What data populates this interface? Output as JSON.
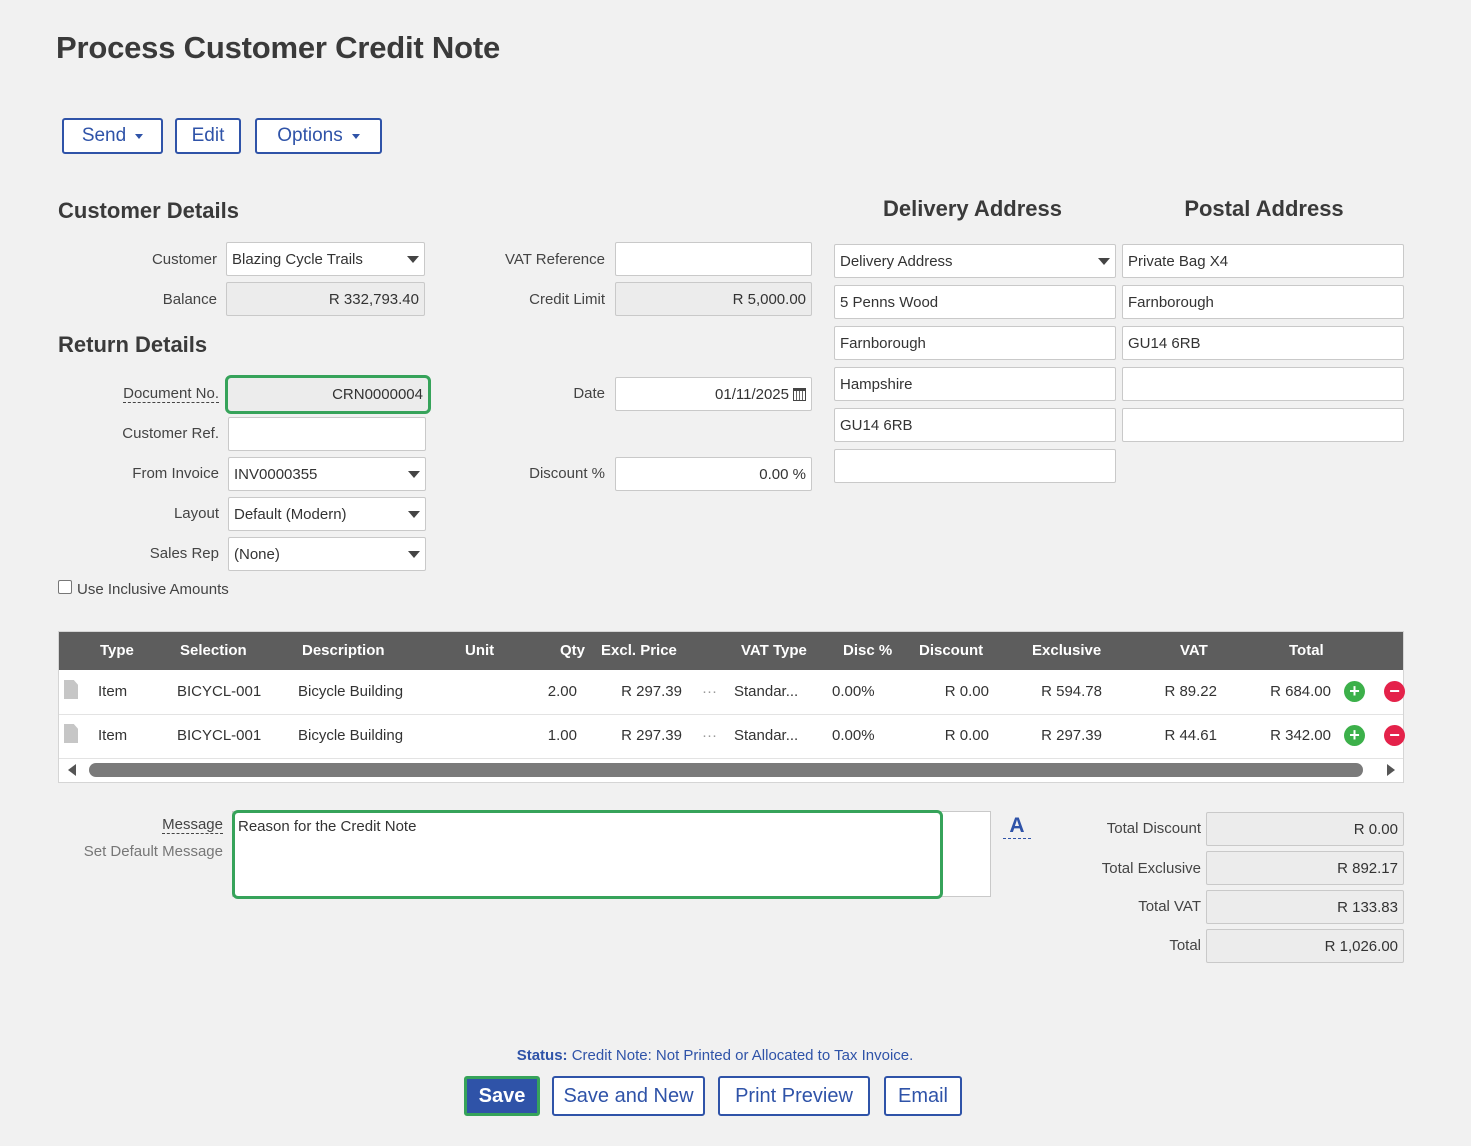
{
  "page": {
    "title": "Process Customer Credit Note"
  },
  "toolbar": {
    "send": "Send",
    "edit": "Edit",
    "options": "Options"
  },
  "sections": {
    "customer_details": "Customer Details",
    "return_details": "Return Details",
    "delivery_address": "Delivery Address",
    "postal_address": "Postal Address"
  },
  "customer": {
    "customer_label": "Customer",
    "customer_value": "Blazing Cycle Trails",
    "balance_label": "Balance",
    "balance_value": "R 332,793.40",
    "vat_ref_label": "VAT Reference",
    "vat_ref_value": "",
    "credit_limit_label": "Credit Limit",
    "credit_limit_value": "R 5,000.00"
  },
  "return": {
    "doc_no_label": "Document No.",
    "doc_no_value": "CRN0000004",
    "cust_ref_label": "Customer Ref.",
    "cust_ref_value": "",
    "from_invoice_label": "From Invoice",
    "from_invoice_value": "INV0000355",
    "layout_label": "Layout",
    "layout_value": "Default (Modern)",
    "sales_rep_label": "Sales Rep",
    "sales_rep_value": "(None)",
    "date_label": "Date",
    "date_value": "01/11/2025",
    "discount_label": "Discount %",
    "discount_value": "0.00 %",
    "inclusive_label": "Use Inclusive Amounts"
  },
  "delivery": {
    "select_value": "Delivery Address",
    "lines": [
      "5 Penns Wood",
      "Farnborough",
      "Hampshire",
      "GU14 6RB",
      ""
    ]
  },
  "postal": {
    "lines": [
      "Private Bag X4",
      "Farnborough",
      "GU14 6RB",
      "",
      ""
    ]
  },
  "grid": {
    "headers": [
      "Type",
      "Selection",
      "Description",
      "Unit",
      "Qty",
      "Excl. Price",
      "VAT Type",
      "Disc %",
      "Discount",
      "Exclusive",
      "VAT",
      "Total"
    ],
    "rows": [
      {
        "type": "Item",
        "selection": "BICYCL-001",
        "description": "Bicycle Building",
        "unit": "",
        "qty": "2.00",
        "excl_price": "R 297.39",
        "vat_type": "Standar...",
        "disc_pct": "0.00%",
        "discount": "R 0.00",
        "exclusive": "R 594.78",
        "vat": "R 89.22",
        "total": "R 684.00"
      },
      {
        "type": "Item",
        "selection": "BICYCL-001",
        "description": "Bicycle Building",
        "unit": "",
        "qty": "1.00",
        "excl_price": "R 297.39",
        "vat_type": "Standar...",
        "disc_pct": "0.00%",
        "discount": "R 0.00",
        "exclusive": "R 297.39",
        "vat": "R 44.61",
        "total": "R 342.00"
      }
    ]
  },
  "message": {
    "label": "Message",
    "set_default": "Set Default Message",
    "value": "Reason for the Credit Note",
    "font_icon": "A"
  },
  "totals": {
    "total_discount_label": "Total Discount",
    "total_discount_value": "R 0.00",
    "total_exclusive_label": "Total Exclusive",
    "total_exclusive_value": "R 892.17",
    "total_vat_label": "Total VAT",
    "total_vat_value": "R 133.83",
    "total_label": "Total",
    "total_value": "R 1,026.00"
  },
  "status": {
    "label": "Status:",
    "text": "Credit Note: Not Printed or Allocated to Tax Invoice."
  },
  "actions": {
    "save": "Save",
    "save_new": "Save and New",
    "print_preview": "Print Preview",
    "email": "Email"
  },
  "colors": {
    "accent": "#2f53a8",
    "highlight": "#36a35a",
    "add": "#3cb04a",
    "delete": "#e4224a"
  }
}
